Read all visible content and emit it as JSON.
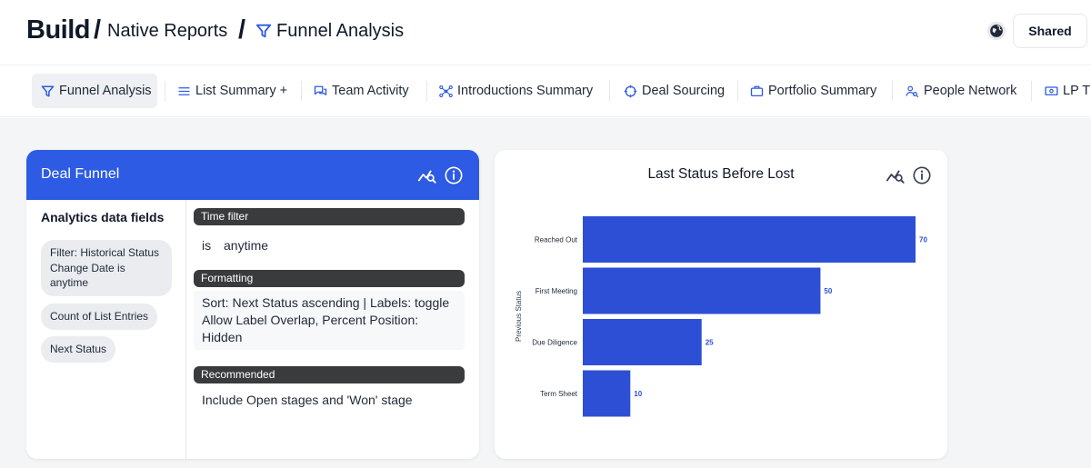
{
  "header": {
    "root": "Build",
    "separator": "/",
    "crumb_1": "Native Reports",
    "crumb_2": "Funnel Analysis",
    "shared_label": "Shared"
  },
  "tabs": [
    {
      "label": "Funnel Analysis",
      "icon": "filter-icon"
    },
    {
      "label": "List Summary +",
      "icon": "list-icon"
    },
    {
      "label": "Team Activity",
      "icon": "chat-icon"
    },
    {
      "label": "Introductions Summary",
      "icon": "network-icon"
    },
    {
      "label": "Deal Sourcing",
      "icon": "crosshair-icon"
    },
    {
      "label": "Portfolio Summary",
      "icon": "briefcase-icon"
    },
    {
      "label": "People Network",
      "icon": "people-icon"
    },
    {
      "label": "LP T",
      "icon": "money-icon"
    }
  ],
  "deal_funnel": {
    "title": "Deal Funnel",
    "fields_title": "Analytics data fields",
    "fields": [
      "Filter: Historical Status Change Date is anytime",
      "Count of List Entries",
      "Next Status"
    ],
    "time_filter_label": "Time filter",
    "time_filter_is": "is",
    "time_filter_value": "anytime",
    "formatting_label": "Formatting",
    "formatting_text": "Sort: Next Status ascending | Labels: toggle Allow Label Overlap, Percent Position: Hidden",
    "recommended_label": "Recommended",
    "recommended_text": "Include Open stages and 'Won' stage"
  },
  "lost_chart": {
    "title": "Last Status Before Lost"
  },
  "chart_data": {
    "type": "bar",
    "orientation": "horizontal",
    "title": "Last Status Before Lost",
    "ylabel": "Previous Status",
    "xlabel": "",
    "categories": [
      "Reached Out",
      "First Meeting",
      "Due Diligence",
      "Term Sheet"
    ],
    "values": [
      70,
      50,
      25,
      10
    ],
    "xlim": [
      0,
      70
    ],
    "grid": false,
    "data_labels": true,
    "bar_color": "#2d4fd6",
    "label_color": "#2d4fd6"
  },
  "colors": {
    "accent": "#2d5be3",
    "dark_chip": "#3a3b3d",
    "pill_bg": "#eaecf0"
  }
}
